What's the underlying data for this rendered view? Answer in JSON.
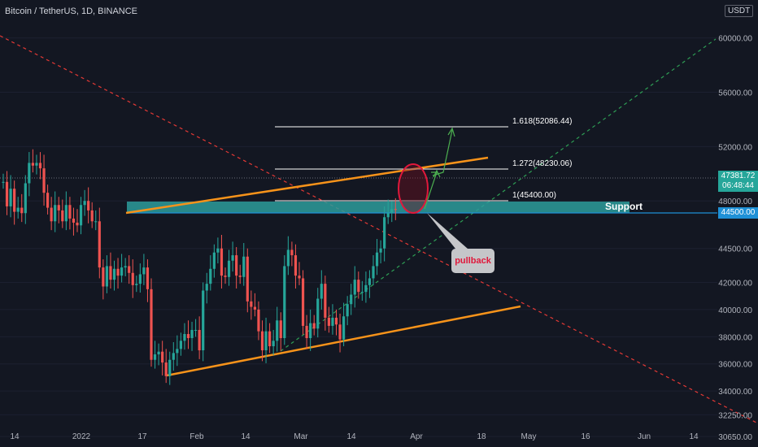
{
  "header": {
    "title": "Bitcoin / TetherUS, 1D, BINANCE",
    "currency": "USDT"
  },
  "annotations": {
    "fib_1618": "1.618(52086.44)",
    "fib_1272": "1.272(48230.06)",
    "fib_1": "1(45400.00)",
    "support": "Support",
    "pullback": "pullback"
  },
  "price_tags": {
    "last_price": "47381.72",
    "countdown": "06:48:44",
    "support_price": "44500.00"
  },
  "colors": {
    "background": "#131722",
    "up": "#26a69a",
    "down": "#ef5350",
    "trendline": "#f7931a",
    "support_zone": "#2d9c9b",
    "fib_line": "#ffffff",
    "arrow": "#4caf50",
    "circle": "#e0183b",
    "support_tag": "#1e90d6"
  },
  "chart_data": {
    "type": "candlestick",
    "symbol": "Bitcoin / TetherUS",
    "interval": "1D",
    "exchange": "BINANCE",
    "y_axis": {
      "labels": [
        "60000.00",
        "56000.00",
        "52000.00",
        "48000.00",
        "44500.00",
        "42000.00",
        "40000.00",
        "38000.00",
        "36000.00",
        "34000.00",
        "32250.00",
        "30650.00"
      ],
      "ylim": [
        30000,
        62000
      ]
    },
    "x_axis": {
      "labels": [
        "14",
        "2022",
        "17",
        "Feb",
        "14",
        "Mar",
        "14",
        "Apr",
        "18",
        "May",
        "16",
        "Jun",
        "14"
      ]
    },
    "last_price": 47381.72,
    "fib_levels": [
      {
        "ratio": 1.618,
        "price": 52086.44
      },
      {
        "ratio": 1.272,
        "price": 48230.06
      },
      {
        "ratio": 1,
        "price": 45400.0
      }
    ],
    "support_level": 44500.0,
    "ohlc_close": [
      49400,
      47600,
      48900,
      47200,
      47500,
      47100,
      49300,
      50800,
      50600,
      50800,
      50400,
      48600,
      47500,
      46500,
      47700,
      47300,
      46500,
      47700,
      46700,
      46400,
      46200,
      47700,
      48000,
      47300,
      46500,
      46500,
      43100,
      41700,
      43200,
      42200,
      43000,
      42500,
      43100,
      43200,
      42700,
      41800,
      41900,
      42600,
      43100,
      41500,
      36300,
      36700,
      36900,
      36100,
      35100,
      36300,
      36800,
      37100,
      37700,
      38200,
      37900,
      38500,
      38500,
      37000,
      41400,
      41900,
      43000,
      44200,
      44500,
      42500,
      42400,
      43600,
      44000,
      42500,
      42400,
      43900,
      40600,
      40200,
      40000,
      38400,
      37000,
      38400,
      37300,
      37700,
      39200,
      37900,
      43200,
      44400,
      44000,
      42500,
      42300,
      38800,
      37900,
      39000,
      38600,
      40800,
      41900,
      39400,
      38800,
      39400,
      38900,
      37800,
      39500,
      40400,
      41100,
      42200,
      41300,
      41300,
      41800,
      42300,
      43200,
      44200,
      44500,
      46800,
      47100,
      47400,
      47381.72
    ]
  }
}
